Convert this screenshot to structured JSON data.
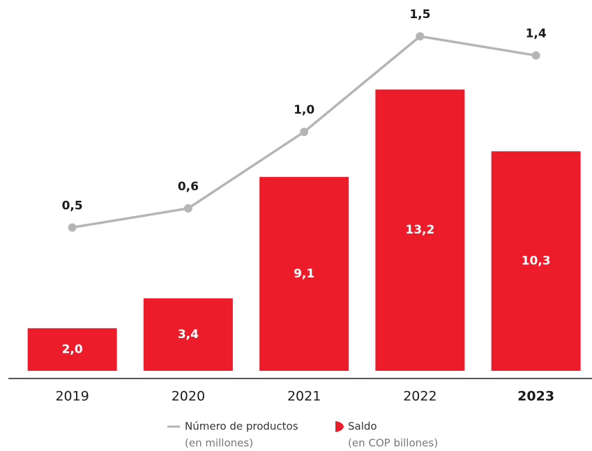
{
  "chart_data": {
    "type": "bar",
    "categories": [
      "2019",
      "2020",
      "2021",
      "2022",
      "2023"
    ],
    "series": [
      {
        "name": "Saldo",
        "unit": "(en COP billones)",
        "color": "#ed1c2a",
        "values": [
          2.0,
          3.4,
          9.1,
          13.2,
          10.3
        ],
        "value_labels": [
          "2,0",
          "3,4",
          "9,1",
          "13,2",
          "10,3"
        ]
      },
      {
        "name": "Número de productos",
        "unit": "(en millones)",
        "type": "line",
        "axis": "y2",
        "color": "#b5b5b5",
        "values": [
          0.5,
          0.6,
          1.0,
          1.5,
          1.4
        ],
        "value_labels": [
          "0,5",
          "0,6",
          "1,0",
          "1,5",
          "1,4"
        ]
      }
    ],
    "ylim": [
      0,
      17.4
    ],
    "y2lim": [
      -0.25,
      1.69
    ]
  }
}
